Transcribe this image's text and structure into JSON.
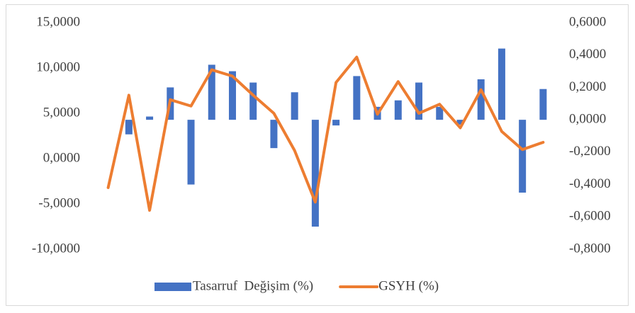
{
  "chart_data": {
    "type": "bar-line",
    "categories": [
      null,
      null,
      null,
      null,
      null,
      null,
      null,
      null,
      null,
      null,
      null,
      null,
      null,
      null,
      null,
      null,
      null,
      null,
      null,
      null,
      null,
      null
    ],
    "series": [
      {
        "name": "Tasarruf  Değişim (%)",
        "type": "bar",
        "axis": "y2",
        "color": "#4472c4",
        "values": [
          0,
          -0.09,
          0.02,
          0.2,
          -0.4,
          0.34,
          0.3,
          0.23,
          -0.175,
          0.17,
          -0.66,
          -0.035,
          0.27,
          0.08,
          0.12,
          0.23,
          0.08,
          -0.03,
          0.25,
          0.44,
          -0.45,
          0.19
        ]
      },
      {
        "name": "GSYH (%)",
        "type": "line",
        "axis": "y",
        "color": "#ed7d31",
        "values": [
          -3.2,
          7.0,
          -5.7,
          6.5,
          5.8,
          9.8,
          9.1,
          7.0,
          5.0,
          0.9,
          -4.8,
          8.4,
          11.2,
          4.9,
          8.5,
          5.0,
          6.0,
          3.4,
          7.6,
          3.0,
          1.0,
          1.8
        ]
      }
    ],
    "ylim": [
      -10,
      15
    ],
    "yticks": [
      {
        "value": -10,
        "label": "-10,0000"
      },
      {
        "value": -5,
        "label": "-5,0000"
      },
      {
        "value": 0,
        "label": "0,0000"
      },
      {
        "value": 5,
        "label": "5,0000"
      },
      {
        "value": 10,
        "label": "10,0000"
      },
      {
        "value": 15,
        "label": "15,0000"
      }
    ],
    "y2lim": [
      -0.8,
      0.6
    ],
    "y2ticks": [
      {
        "value": -0.8,
        "label": "-0,8000"
      },
      {
        "value": -0.6,
        "label": "-0,6000"
      },
      {
        "value": -0.4,
        "label": "-0,4000"
      },
      {
        "value": -0.2,
        "label": "-0,2000"
      },
      {
        "value": 0,
        "label": "0,0000"
      },
      {
        "value": 0.2,
        "label": "0,2000"
      },
      {
        "value": 0.4,
        "label": "0,4000"
      },
      {
        "value": 0.6,
        "label": "0,6000"
      }
    ],
    "legend": "bottom"
  }
}
